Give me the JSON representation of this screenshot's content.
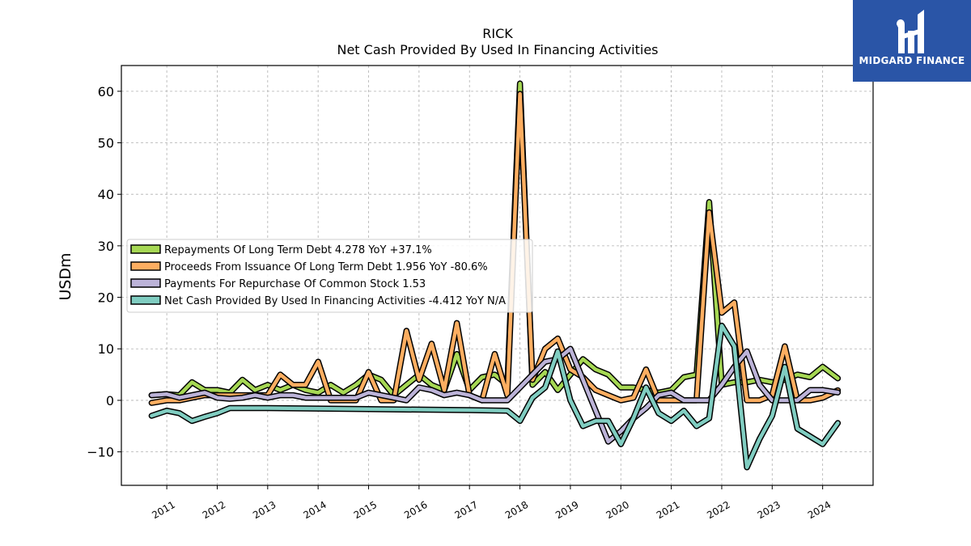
{
  "chart_data": {
    "type": "line",
    "title": "RICK",
    "subtitle": "Net Cash Provided By Used In Financing Activities",
    "xlabel": "",
    "ylabel": "USDm",
    "xlim": [
      2010.1,
      2025.0
    ],
    "ylim": [
      -16.5,
      65
    ],
    "yticks": [
      -10,
      0,
      10,
      20,
      30,
      40,
      50,
      60
    ],
    "ytick_labels": [
      "−10",
      "0",
      "10",
      "20",
      "30",
      "40",
      "50",
      "60"
    ],
    "xtick_labels": [
      "2011",
      "2012",
      "2013",
      "2014",
      "2015",
      "2016",
      "2017",
      "2018",
      "2019",
      "2020",
      "2021",
      "2022",
      "2023",
      "2024"
    ],
    "grid": true,
    "legend_position": "center-left",
    "series": [
      {
        "name": "Repayments Of Long Term Debt  4.278 YoY +37.1%",
        "color": "#a6d854",
        "points": [
          [
            2010.7,
            1.0
          ],
          [
            2011.0,
            1.2
          ],
          [
            2011.25,
            1.0
          ],
          [
            2011.5,
            3.5
          ],
          [
            2011.75,
            2.0
          ],
          [
            2012.0,
            2.0
          ],
          [
            2012.25,
            1.5
          ],
          [
            2012.5,
            4.0
          ],
          [
            2012.75,
            2.0
          ],
          [
            2013.0,
            3.0
          ],
          [
            2013.25,
            2.0
          ],
          [
            2013.5,
            3.0
          ],
          [
            2013.75,
            2.0
          ],
          [
            2014.0,
            1.5
          ],
          [
            2014.25,
            3.0
          ],
          [
            2014.5,
            1.5
          ],
          [
            2014.75,
            3.0
          ],
          [
            2015.0,
            5.0
          ],
          [
            2015.25,
            4.0
          ],
          [
            2015.5,
            1.0
          ],
          [
            2015.75,
            3.0
          ],
          [
            2016.0,
            5.0
          ],
          [
            2016.25,
            3.0
          ],
          [
            2016.5,
            2.0
          ],
          [
            2016.75,
            9.0
          ],
          [
            2017.0,
            2.0
          ],
          [
            2017.25,
            4.5
          ],
          [
            2017.5,
            5.0
          ],
          [
            2017.75,
            3.0
          ],
          [
            2018.0,
            61.5
          ],
          [
            2018.25,
            3.0
          ],
          [
            2018.5,
            5.5
          ],
          [
            2018.75,
            2.0
          ],
          [
            2019.0,
            5.0
          ],
          [
            2019.25,
            8.0
          ],
          [
            2019.5,
            6.0
          ],
          [
            2019.75,
            5.0
          ],
          [
            2020.0,
            2.5
          ],
          [
            2020.25,
            2.5
          ],
          [
            2020.5,
            2.0
          ],
          [
            2020.75,
            1.5
          ],
          [
            2021.0,
            2.0
          ],
          [
            2021.25,
            4.5
          ],
          [
            2021.5,
            5.0
          ],
          [
            2021.75,
            38.5
          ],
          [
            2022.0,
            3.0
          ],
          [
            2022.25,
            3.5
          ],
          [
            2022.5,
            3.5
          ],
          [
            2022.75,
            4.0
          ],
          [
            2023.0,
            3.5
          ],
          [
            2023.25,
            4.0
          ],
          [
            2023.5,
            5.0
          ],
          [
            2023.75,
            4.5
          ],
          [
            2024.0,
            6.5
          ],
          [
            2024.3,
            4.278
          ]
        ]
      },
      {
        "name": "Proceeds From Issuance Of Long Term Debt  1.956 YoY -80.6%",
        "color": "#fdae61",
        "points": [
          [
            2010.7,
            -0.5
          ],
          [
            2011.0,
            0.0
          ],
          [
            2011.25,
            0.0
          ],
          [
            2011.5,
            0.5
          ],
          [
            2011.75,
            1.0
          ],
          [
            2012.0,
            1.0
          ],
          [
            2012.25,
            1.0
          ],
          [
            2012.5,
            1.0
          ],
          [
            2012.75,
            1.0
          ],
          [
            2013.0,
            1.0
          ],
          [
            2013.25,
            5.0
          ],
          [
            2013.5,
            3.0
          ],
          [
            2013.75,
            3.0
          ],
          [
            2014.0,
            7.5
          ],
          [
            2014.25,
            0.0
          ],
          [
            2014.5,
            0.0
          ],
          [
            2014.75,
            0.0
          ],
          [
            2015.0,
            5.5
          ],
          [
            2015.25,
            0.0
          ],
          [
            2015.5,
            0.0
          ],
          [
            2015.75,
            13.5
          ],
          [
            2016.0,
            4.0
          ],
          [
            2016.25,
            11.0
          ],
          [
            2016.5,
            2.0
          ],
          [
            2016.75,
            15.0
          ],
          [
            2017.0,
            1.0
          ],
          [
            2017.25,
            0.0
          ],
          [
            2017.5,
            9.0
          ],
          [
            2017.75,
            1.0
          ],
          [
            2018.0,
            59.5
          ],
          [
            2018.25,
            4.0
          ],
          [
            2018.5,
            10.0
          ],
          [
            2018.75,
            12.0
          ],
          [
            2019.0,
            6.0
          ],
          [
            2019.25,
            4.5
          ],
          [
            2019.5,
            2.0
          ],
          [
            2019.75,
            1.0
          ],
          [
            2020.0,
            0.0
          ],
          [
            2020.25,
            0.5
          ],
          [
            2020.5,
            6.0
          ],
          [
            2020.75,
            0.0
          ],
          [
            2021.0,
            0.0
          ],
          [
            2021.25,
            0.0
          ],
          [
            2021.5,
            0.0
          ],
          [
            2021.75,
            36.5
          ],
          [
            2022.0,
            17.0
          ],
          [
            2022.25,
            19.0
          ],
          [
            2022.5,
            0.0
          ],
          [
            2022.75,
            0.0
          ],
          [
            2023.0,
            1.0
          ],
          [
            2023.25,
            10.5
          ],
          [
            2023.5,
            0.0
          ],
          [
            2023.75,
            0.0
          ],
          [
            2024.0,
            0.5
          ],
          [
            2024.3,
            1.956
          ]
        ]
      },
      {
        "name": "Payments For Repurchase Of Common Stock  1.53",
        "color": "#bcb3d8",
        "points": [
          [
            2010.7,
            1.0
          ],
          [
            2011.0,
            1.2
          ],
          [
            2011.25,
            0.5
          ],
          [
            2011.5,
            1.0
          ],
          [
            2011.75,
            1.5
          ],
          [
            2012.0,
            0.5
          ],
          [
            2012.25,
            0.3
          ],
          [
            2012.5,
            0.5
          ],
          [
            2012.75,
            1.0
          ],
          [
            2013.0,
            0.5
          ],
          [
            2013.25,
            1.0
          ],
          [
            2013.5,
            1.0
          ],
          [
            2013.75,
            0.5
          ],
          [
            2014.0,
            0.5
          ],
          [
            2014.25,
            0.5
          ],
          [
            2014.5,
            0.5
          ],
          [
            2014.75,
            0.5
          ],
          [
            2015.0,
            1.5
          ],
          [
            2015.25,
            1.0
          ],
          [
            2015.5,
            0.5
          ],
          [
            2015.75,
            0.0
          ],
          [
            2016.0,
            2.5
          ],
          [
            2016.25,
            2.0
          ],
          [
            2016.5,
            1.0
          ],
          [
            2016.75,
            1.5
          ],
          [
            2017.0,
            1.0
          ],
          [
            2017.25,
            0.0
          ],
          [
            2017.5,
            0.0
          ],
          [
            2017.75,
            0.0
          ],
          [
            2018.0,
            2.5
          ],
          [
            2018.25,
            5.0
          ],
          [
            2018.5,
            7.5
          ],
          [
            2018.75,
            8.0
          ],
          [
            2019.0,
            10.0
          ],
          [
            2019.25,
            4.0
          ],
          [
            2019.5,
            -2.0
          ],
          [
            2019.75,
            -8.0
          ],
          [
            2020.0,
            -6.0
          ],
          [
            2020.25,
            -3.5
          ],
          [
            2020.5,
            -1.5
          ],
          [
            2020.75,
            1.0
          ],
          [
            2021.0,
            1.5
          ],
          [
            2021.25,
            0.0
          ],
          [
            2021.5,
            0.0
          ],
          [
            2021.75,
            0.0
          ],
          [
            2022.0,
            3.0
          ],
          [
            2022.25,
            6.5
          ],
          [
            2022.5,
            9.5
          ],
          [
            2022.75,
            3.0
          ],
          [
            2023.0,
            0.0
          ],
          [
            2023.25,
            0.0
          ],
          [
            2023.5,
            0.0
          ],
          [
            2023.75,
            2.0
          ],
          [
            2024.0,
            2.0
          ],
          [
            2024.3,
            1.53
          ]
        ]
      },
      {
        "name": "Net Cash Provided By Used In Financing Activities  -4.412 YoY N/A",
        "color": "#80cdc1",
        "points": [
          [
            2010.7,
            -3.0
          ],
          [
            2011.0,
            -2.0
          ],
          [
            2011.25,
            -2.5
          ],
          [
            2011.5,
            -4.0
          ],
          [
            2011.75,
            -3.2
          ],
          [
            2012.0,
            -2.5
          ],
          [
            2012.25,
            -1.5
          ],
          [
            2013.0,
            -1.5
          ],
          [
            2014.0,
            -1.6
          ],
          [
            2015.0,
            -1.7
          ],
          [
            2016.0,
            -1.8
          ],
          [
            2017.0,
            -1.9
          ],
          [
            2017.75,
            -2.0
          ],
          [
            2018.0,
            -4.0
          ],
          [
            2018.25,
            0.5
          ],
          [
            2018.5,
            2.5
          ],
          [
            2018.75,
            9.5
          ],
          [
            2019.0,
            0.0
          ],
          [
            2019.25,
            -5.0
          ],
          [
            2019.5,
            -4.0
          ],
          [
            2019.75,
            -4.0
          ],
          [
            2020.0,
            -8.5
          ],
          [
            2020.25,
            -3.5
          ],
          [
            2020.5,
            2.5
          ],
          [
            2020.75,
            -2.5
          ],
          [
            2021.0,
            -4.0
          ],
          [
            2021.25,
            -2.0
          ],
          [
            2021.5,
            -5.0
          ],
          [
            2021.75,
            -3.5
          ],
          [
            2022.0,
            14.5
          ],
          [
            2022.25,
            10.5
          ],
          [
            2022.5,
            -13.0
          ],
          [
            2022.75,
            -7.5
          ],
          [
            2023.0,
            -3.0
          ],
          [
            2023.25,
            6.5
          ],
          [
            2023.5,
            -5.5
          ],
          [
            2023.75,
            -7.0
          ],
          [
            2024.0,
            -8.5
          ],
          [
            2024.3,
            -4.412
          ]
        ]
      }
    ]
  },
  "logo": {
    "text": "MIDGARD FINANCE"
  }
}
